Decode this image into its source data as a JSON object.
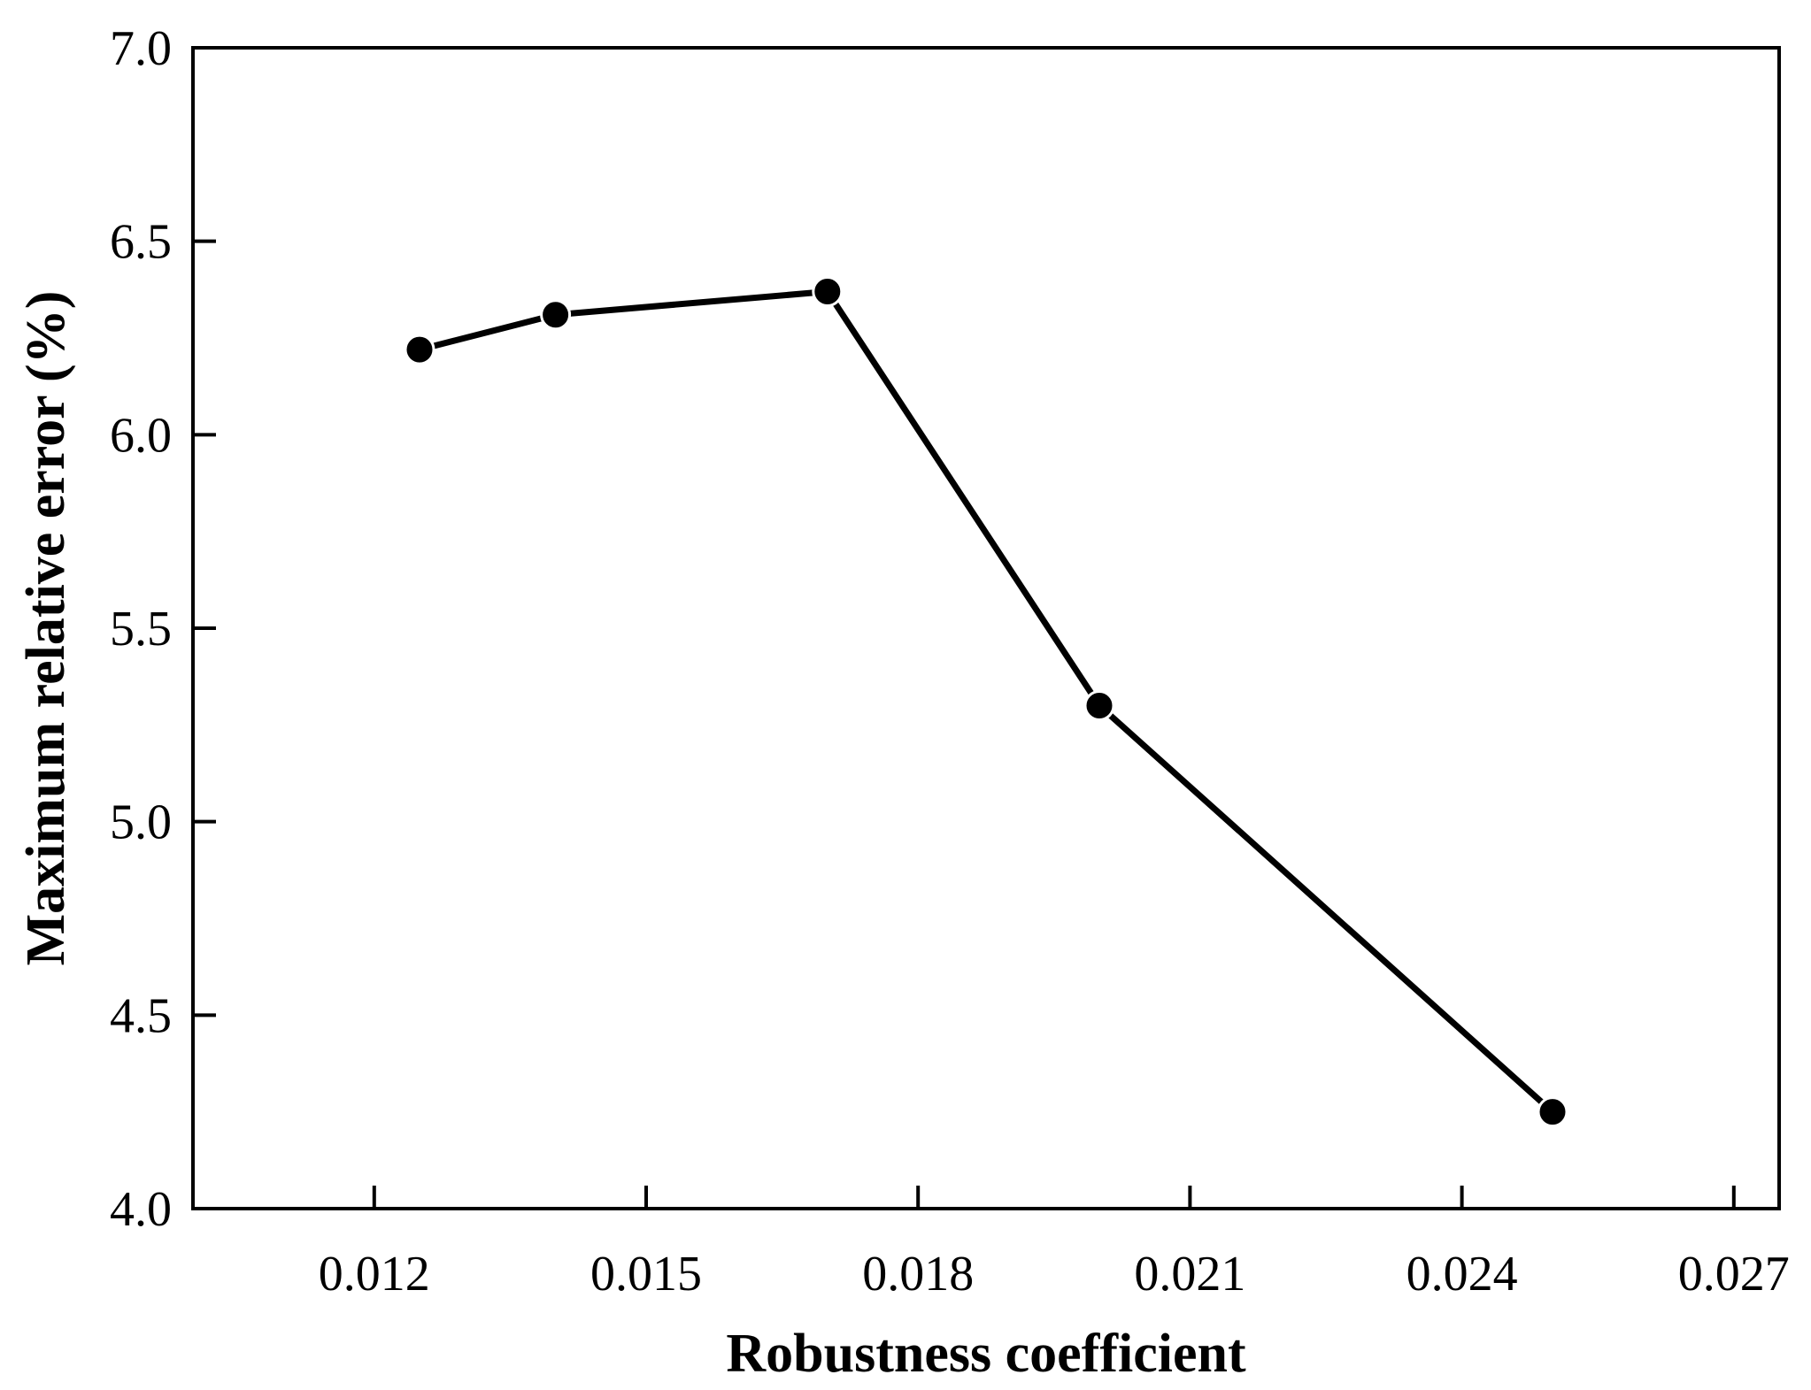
{
  "chart_data": {
    "type": "line",
    "title": "",
    "xlabel": "Robustness coefficient",
    "ylabel": "Maximum relative error (%)",
    "xlim": [
      0.01,
      0.0275
    ],
    "ylim": [
      4.0,
      7.0
    ],
    "xticks": [
      0.012,
      0.015,
      0.018,
      0.021,
      0.024,
      0.027
    ],
    "xtick_labels": [
      "0.012",
      "0.015",
      "0.018",
      "0.021",
      "0.024",
      "0.027"
    ],
    "yticks": [
      4.0,
      4.5,
      5.0,
      5.5,
      6.0,
      6.5,
      7.0
    ],
    "ytick_labels": [
      "4.0",
      "4.5",
      "5.0",
      "5.5",
      "6.0",
      "6.5",
      "7.0"
    ],
    "grid": false,
    "series": [
      {
        "name": "Maximum relative error",
        "marker": "filled-circle",
        "color": "#000000",
        "x": [
          0.0125,
          0.014,
          0.017,
          0.02,
          0.025
        ],
        "values": [
          6.22,
          6.31,
          6.37,
          5.3,
          4.25
        ]
      }
    ]
  }
}
